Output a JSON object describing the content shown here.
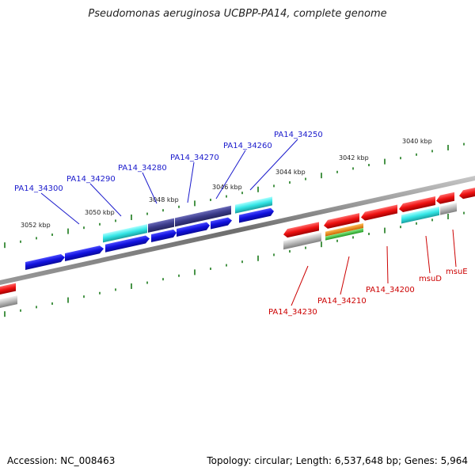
{
  "title": "Pseudomonas aeruginosa UCBPP-PA14, complete genome",
  "footer": {
    "accession": "Accession: NC_008463",
    "topology": "Topology: circular; Length: 6,537,648 bp; Genes: 5,964"
  },
  "scale_labels": [
    "3052 kbp",
    "3050 kbp",
    "3048 kbp",
    "3046 kbp",
    "3044 kbp",
    "3042 kbp",
    "3040 kbp"
  ],
  "gene_labels_upper": [
    "PA14_34300",
    "PA14_34290",
    "PA14_34280",
    "PA14_34270",
    "PA14_34260",
    "PA14_34250"
  ],
  "gene_labels_lower": [
    "PA14_34230",
    "PA14_34210",
    "PA14_34200",
    "msuD",
    "msuE"
  ],
  "colors": {
    "upper_label": "#1a1acc",
    "lower_label": "#cc0000",
    "gene_blue": "#1010dd",
    "gene_cyan": "#33e6e6",
    "gene_purple": "#3b3b8a",
    "gene_red": "#ee1111",
    "gene_gray": "#b8b8b8",
    "gene_orange": "#ee8800",
    "gene_green": "#33bb33",
    "tick": "#1a7a1a",
    "backbone": "#7a7a7a"
  }
}
